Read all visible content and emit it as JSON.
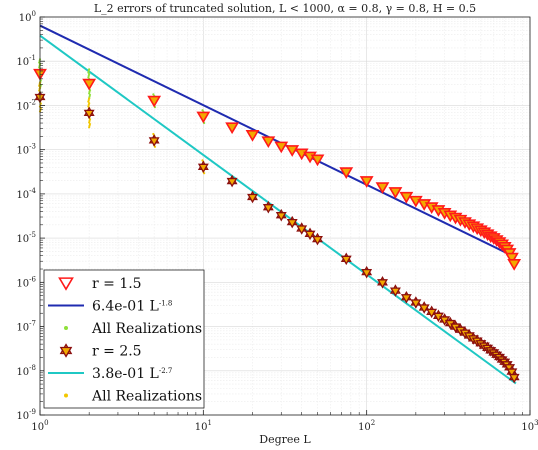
{
  "chart_data": {
    "type": "scatter",
    "title": "L_2 errors of truncated solution, L < 1000, α = 0.8, γ = 0.8, H = 0.5",
    "xlabel": "Degree L",
    "ylabel": "",
    "xscale": "log",
    "yscale": "log",
    "xlim": [
      1,
      1000
    ],
    "ylim": [
      1e-09,
      1
    ],
    "grid": true,
    "legend_position": "lower-left",
    "x_tick_labels": [
      "10^0",
      "10^1",
      "10^2",
      "10^3"
    ],
    "y_tick_labels": [
      "10^-9",
      "10^-8",
      "10^-7",
      "10^-6",
      "10^-5",
      "10^-4",
      "10^-3",
      "10^-2",
      "10^-1",
      "10^0"
    ],
    "series": [
      {
        "name": "r = 1.5",
        "kind": "marker-triangle-down",
        "color": "#ff1a1a",
        "fill": "#f2a900",
        "points": [
          [
            1,
            0.052
          ],
          [
            2,
            0.031
          ],
          [
            5,
            0.0128
          ],
          [
            10,
            0.0056
          ],
          [
            15,
            0.0032
          ],
          [
            20,
            0.00215
          ],
          [
            25,
            0.00155
          ],
          [
            30,
            0.00118
          ],
          [
            35,
            0.00098
          ],
          [
            40,
            0.00082
          ],
          [
            45,
            0.0007
          ],
          [
            50,
            0.0006
          ],
          [
            75,
            0.00031
          ],
          [
            100,
            0.000195
          ],
          [
            125,
            0.000142
          ],
          [
            150,
            0.00011
          ],
          [
            175,
            8.6e-05
          ],
          [
            200,
            7e-05
          ],
          [
            225,
            5.9e-05
          ],
          [
            250,
            5e-05
          ],
          [
            275,
            4.3e-05
          ],
          [
            300,
            3.7e-05
          ],
          [
            325,
            3.25e-05
          ],
          [
            350,
            2.9e-05
          ],
          [
            375,
            2.6e-05
          ],
          [
            400,
            2.3e-05
          ],
          [
            425,
            2.05e-05
          ],
          [
            450,
            1.85e-05
          ],
          [
            475,
            1.67e-05
          ],
          [
            500,
            1.5e-05
          ],
          [
            525,
            1.35e-05
          ],
          [
            550,
            1.22e-05
          ],
          [
            575,
            1.1e-05
          ],
          [
            600,
            1e-05
          ],
          [
            625,
            9e-06
          ],
          [
            650,
            8.1e-06
          ],
          [
            675,
            7.2e-06
          ],
          [
            700,
            6.3e-06
          ],
          [
            725,
            5.5e-06
          ],
          [
            750,
            4.6e-06
          ],
          [
            775,
            3.6e-06
          ],
          [
            800,
            2.6e-06
          ]
        ]
      },
      {
        "name": "6.4e-01 L^{-1.8}",
        "kind": "line",
        "color": "#1f2bb0",
        "coefficient": 0.64,
        "exponent": -1.8
      },
      {
        "name": "All Realizations",
        "kind": "dot",
        "color": "#8fe03a"
      },
      {
        "name": "r = 2.5",
        "kind": "marker-hexagram",
        "color": "#8b0f0f",
        "fill": "#f2a900",
        "points": [
          [
            1,
            0.0155
          ],
          [
            2,
            0.0068
          ],
          [
            5,
            0.00162
          ],
          [
            10,
            0.00041
          ],
          [
            15,
            0.000195
          ],
          [
            20,
            8.5e-05
          ],
          [
            25,
            5e-05
          ],
          [
            30,
            3.3e-05
          ],
          [
            35,
            2.3e-05
          ],
          [
            40,
            1.65e-05
          ],
          [
            45,
            1.25e-05
          ],
          [
            50,
            9.5e-06
          ],
          [
            75,
            3.4e-06
          ],
          [
            100,
            1.7e-06
          ],
          [
            125,
            1e-06
          ],
          [
            150,
            6.5e-07
          ],
          [
            175,
            4.6e-07
          ],
          [
            200,
            3.5e-07
          ],
          [
            225,
            2.7e-07
          ],
          [
            250,
            2.15e-07
          ],
          [
            275,
            1.75e-07
          ],
          [
            300,
            1.45e-07
          ],
          [
            325,
            1.2e-07
          ],
          [
            350,
            1e-07
          ],
          [
            375,
            8.5e-08
          ],
          [
            400,
            7.3e-08
          ],
          [
            425,
            6.3e-08
          ],
          [
            450,
            5.4e-08
          ],
          [
            475,
            4.8e-08
          ],
          [
            500,
            4.2e-08
          ],
          [
            525,
            3.7e-08
          ],
          [
            550,
            3.3e-08
          ],
          [
            575,
            2.9e-08
          ],
          [
            600,
            2.6e-08
          ],
          [
            625,
            2.3e-08
          ],
          [
            650,
            2.05e-08
          ],
          [
            675,
            1.8e-08
          ],
          [
            700,
            1.6e-08
          ],
          [
            725,
            1.4e-08
          ],
          [
            750,
            1.2e-08
          ],
          [
            775,
            9.6e-09
          ],
          [
            800,
            7.2e-09
          ]
        ]
      },
      {
        "name": "3.8e-01 L^{-2.7}",
        "kind": "line",
        "color": "#1fc8c4",
        "coefficient": 0.38,
        "exponent": -2.7
      },
      {
        "name": "All Realizations",
        "kind": "dot",
        "color": "#f2c700"
      }
    ]
  }
}
